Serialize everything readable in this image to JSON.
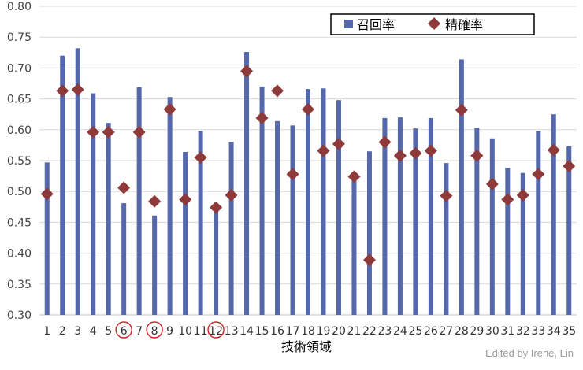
{
  "chart_data": {
    "type": "bar",
    "xlabel": "技術領域",
    "ylim": [
      0.3,
      0.8
    ],
    "yticks": [
      "0.30",
      "0.35",
      "0.40",
      "0.45",
      "0.50",
      "0.55",
      "0.60",
      "0.65",
      "0.70",
      "0.75",
      "0.80"
    ],
    "categories": [
      "1",
      "2",
      "3",
      "4",
      "5",
      "6",
      "7",
      "8",
      "9",
      "10",
      "11",
      "12",
      "13",
      "14",
      "15",
      "16",
      "17",
      "18",
      "19",
      "20",
      "21",
      "22",
      "23",
      "24",
      "25",
      "26",
      "27",
      "28",
      "29",
      "30",
      "31",
      "32",
      "33",
      "34",
      "35"
    ],
    "highlighted_categories": [
      "6",
      "8",
      "12"
    ],
    "grid": true,
    "legend_position": "top-right",
    "series": [
      {
        "name": "召回率",
        "type": "bar",
        "color": "#5468ab",
        "values": [
          0.547,
          0.72,
          0.732,
          0.659,
          0.611,
          0.481,
          0.669,
          0.461,
          0.653,
          0.564,
          0.598,
          0.47,
          0.58,
          0.726,
          0.67,
          0.614,
          0.607,
          0.666,
          0.667,
          0.648,
          0.518,
          0.565,
          0.619,
          0.62,
          0.602,
          0.619,
          0.546,
          0.714,
          0.603,
          0.586,
          0.538,
          0.53,
          0.598,
          0.625,
          0.573
        ]
      },
      {
        "name": "精確率",
        "type": "scatter",
        "marker": "diamond",
        "color": "#8e3a3a",
        "values": [
          0.496,
          0.663,
          0.665,
          0.596,
          0.596,
          0.506,
          0.596,
          0.484,
          0.633,
          0.487,
          0.555,
          0.474,
          0.494,
          0.695,
          0.619,
          0.663,
          0.528,
          0.633,
          0.566,
          0.577,
          0.524,
          0.389,
          0.58,
          0.558,
          0.562,
          0.566,
          0.493,
          0.632,
          0.558,
          0.512,
          0.487,
          0.494,
          0.528,
          0.567,
          0.541
        ]
      }
    ]
  },
  "credit": "Edited by Irene, Lin"
}
